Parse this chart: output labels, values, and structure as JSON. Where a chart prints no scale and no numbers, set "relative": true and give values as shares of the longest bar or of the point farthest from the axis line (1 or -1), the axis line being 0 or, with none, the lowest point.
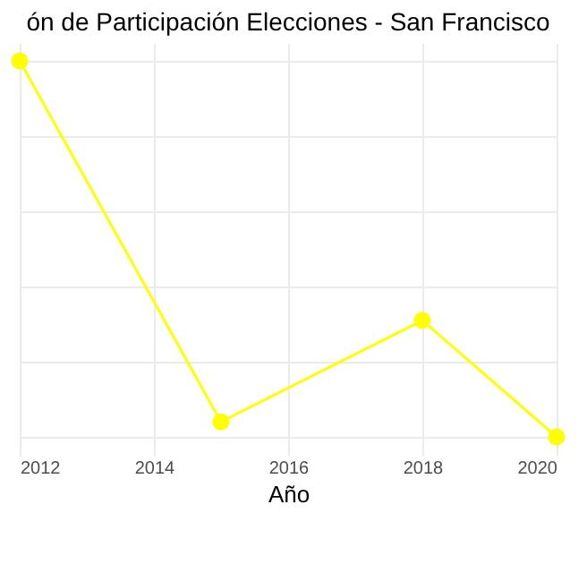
{
  "chart_data": {
    "type": "line",
    "title": "ón de Participación Elecciones - San Francisco",
    "xlabel": "Año",
    "x": [
      2012,
      2015,
      2018,
      2020
    ],
    "series": [
      {
        "color": "#ffff00",
        "values": [
          1,
          0.04,
          0.31,
          0
        ]
      }
    ],
    "relative": true,
    "xlim": [
      2012,
      2020
    ],
    "xticks": [
      2012,
      2014,
      2016,
      2018,
      2020
    ],
    "grid": true,
    "marker": "circle"
  }
}
